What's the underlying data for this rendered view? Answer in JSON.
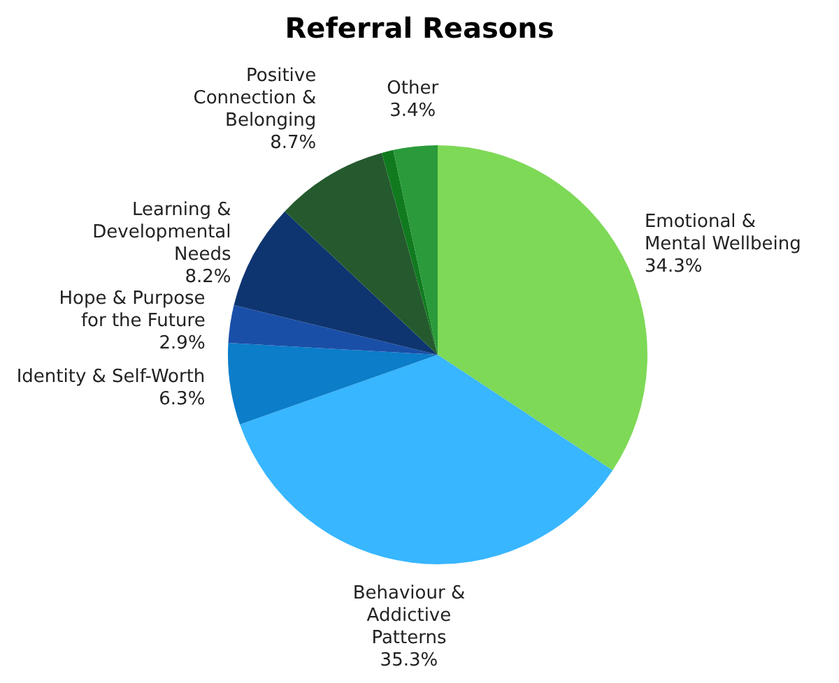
{
  "chart_data": {
    "type": "pie",
    "title": "Referral Reasons",
    "categories": [
      "Emotional & Mental Wellbeing",
      "Behaviour & Addictive Patterns",
      "Identity & Self-Worth",
      "Hope & Purpose for the Future",
      "Learning & Developmental Needs",
      "Positive Connection & Belonging",
      null,
      "Other"
    ],
    "values": [
      34.3,
      35.3,
      6.3,
      2.9,
      8.2,
      8.7,
      0.9,
      3.4
    ],
    "value_labels": [
      "34.3%",
      "35.3%",
      "6.3%",
      "2.9%",
      "8.2%",
      "8.7%",
      null,
      "3.4%"
    ],
    "colors": [
      "#7ed957",
      "#38b6ff",
      "#0b7dc9",
      "#1a4fa8",
      "#0f3570",
      "#255a2e",
      "#117a1f",
      "#2a9a3a"
    ]
  }
}
